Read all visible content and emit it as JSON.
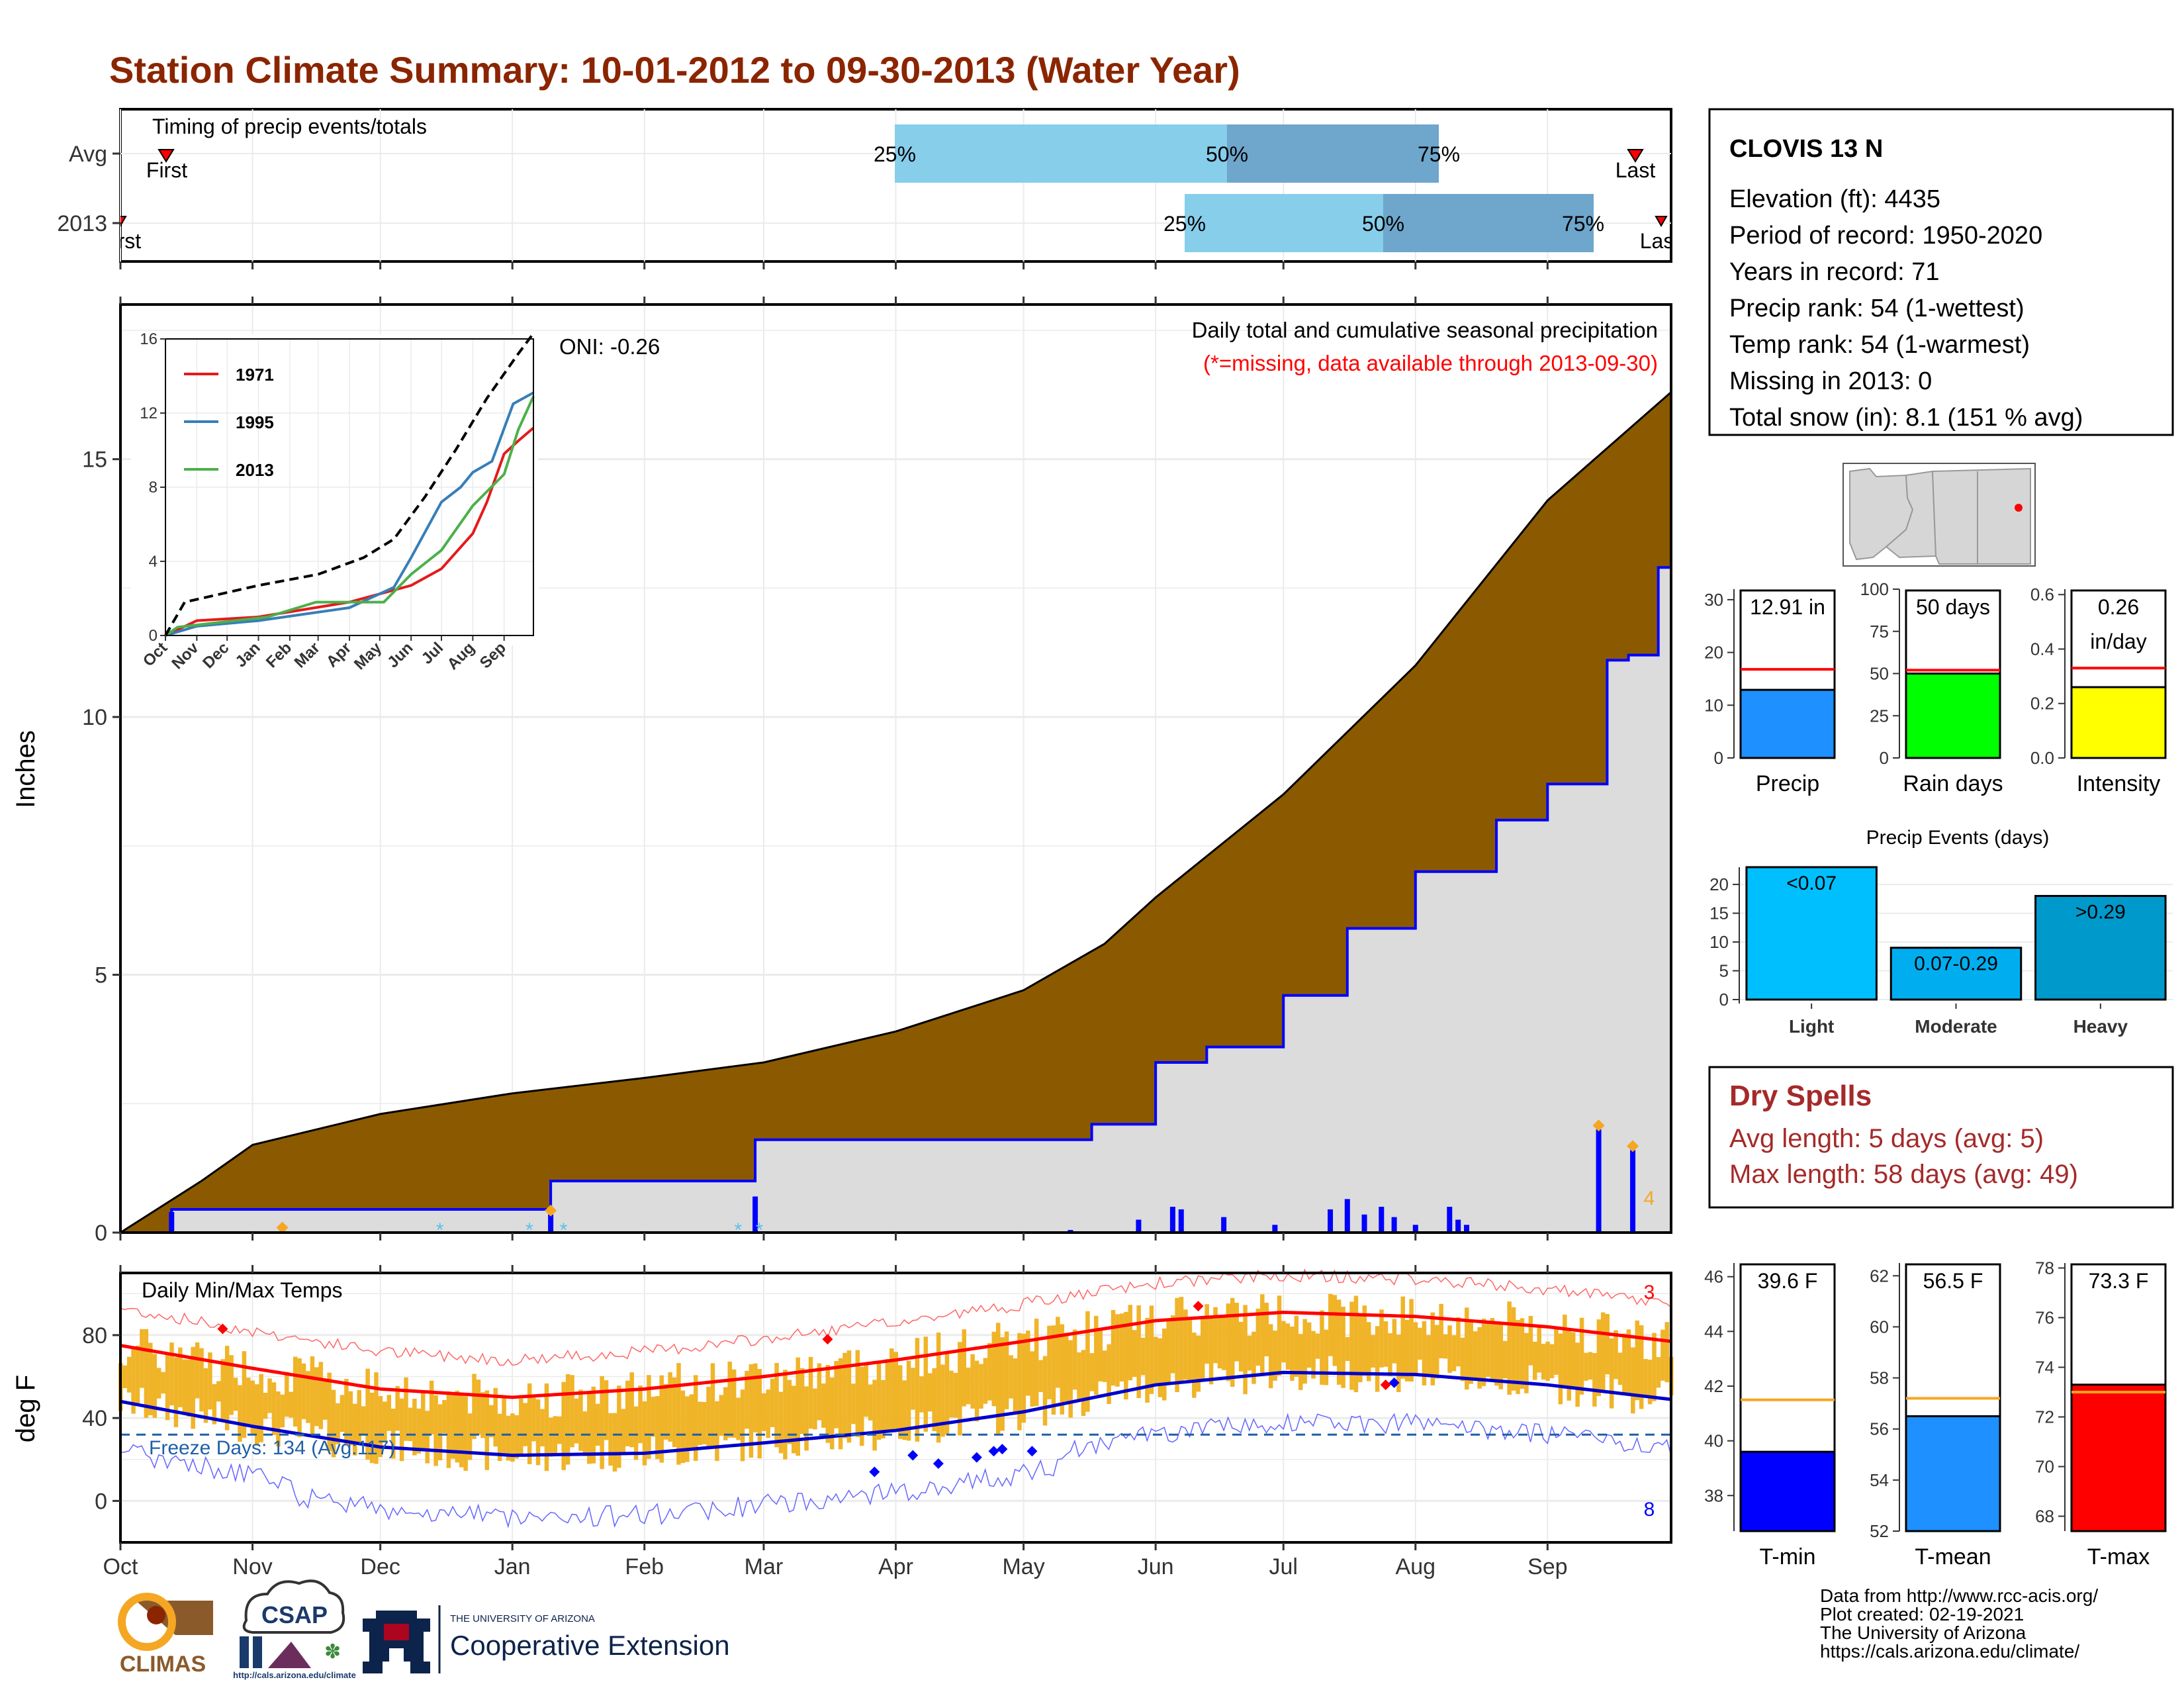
{
  "title": "Station Climate Summary: 10-01-2012 to 09-30-2013 (Water Year)",
  "colors": {
    "title": "#8b2500",
    "precip_fill": "#8b5a00",
    "light_bar": "#87ceeb",
    "dark_bar": "#6ea6cc",
    "accent_red": "#ff0000",
    "accent_blue": "#0000ff",
    "orange": "#f5a623",
    "freeze_line": "#1f5fa8"
  },
  "timing_panel": {
    "title": "Timing of precip events/totals",
    "rows": [
      "Avg",
      "2013"
    ],
    "avg": {
      "first_label": "First",
      "last_label": "Last",
      "q25": "25%",
      "q50": "50%",
      "q75": "75%"
    },
    "year": {
      "first_label": "First",
      "last_label": "Last",
      "q25": "25%",
      "q50": "50%",
      "q75": "75%"
    }
  },
  "precip_panel": {
    "ylabel": "Inches",
    "yticks": [
      "0",
      "5",
      "10",
      "15"
    ],
    "caption": "Daily total and cumulative seasonal precipitation",
    "missing_note": "(*=missing, data available through 2013-09-30)",
    "oni": "ONI: -0.26",
    "count_label": "4"
  },
  "temp_panel": {
    "title": "Daily Min/Max Temps",
    "ylabel": "deg F",
    "yticks": [
      "0",
      "40",
      "80"
    ],
    "freeze_label": "Freeze Days: 134 (Avg:117)",
    "record_high_count": "3",
    "record_low_count": "8"
  },
  "month_labels": [
    "Oct",
    "Nov",
    "Dec",
    "Jan",
    "Feb",
    "Mar",
    "Apr",
    "May",
    "Jun",
    "Jul",
    "Aug",
    "Sep"
  ],
  "inset": {
    "yticks": [
      "0",
      "4",
      "8",
      "12",
      "16"
    ],
    "months": [
      "Oct",
      "Nov",
      "Dec",
      "Jan",
      "Feb",
      "Mar",
      "Apr",
      "May",
      "Jun",
      "Jul",
      "Aug",
      "Sep"
    ],
    "legend": [
      "1971",
      "1995",
      "2013"
    ]
  },
  "station": {
    "name": "CLOVIS 13 N",
    "lines": [
      "Elevation (ft): 4435",
      "Period of record: 1950-2020",
      "Years in record: 71",
      "Precip rank: 54 (1-wettest)",
      "Temp rank: 54 (1-warmest)",
      "Missing in 2013: 0",
      "Total snow (in): 8.1 (151 % avg)"
    ]
  },
  "summary_bars": [
    {
      "label": "Precip",
      "value_text": "12.91 in"
    },
    {
      "label": "Rain days",
      "value_text": "50 days"
    },
    {
      "label": "Intensity",
      "value_text_1": "0.26",
      "value_text_2": "in/day"
    }
  ],
  "events_panel": {
    "title": "Precip Events (days)",
    "bars": [
      {
        "label": "Light",
        "bin": "<0.07"
      },
      {
        "label": "Moderate",
        "bin": "0.07-0.29"
      },
      {
        "label": "Heavy",
        "bin": ">0.29"
      }
    ]
  },
  "dry_spells": {
    "title": "Dry Spells",
    "avg_line": "Avg length: 5 days (avg: 5)",
    "max_line": "Max length: 58 days (avg: 49)"
  },
  "temp_bars": [
    {
      "label": "T-min",
      "value_text": "39.6 F"
    },
    {
      "label": "T-mean",
      "value_text": "56.5 F"
    },
    {
      "label": "T-max",
      "value_text": "73.3 F"
    }
  ],
  "credits": [
    "Data from http://www.rcc-acis.org/",
    "Plot created: 02-19-2021",
    "The University of Arizona",
    "https://cals.arizona.edu/climate/"
  ],
  "logos": {
    "climas": "CLIMAS",
    "csap": "CSAP",
    "csap_url": "http://cals.arizona.edu/climate",
    "ua_small": "THE UNIVERSITY OF ARIZONA",
    "ua_big": "Cooperative Extension"
  },
  "chart_data": [
    {
      "type": "area",
      "name": "cumulative precipitation",
      "x_domain": [
        "2012-10-01",
        "2013-09-30"
      ],
      "ylim": [
        0,
        18
      ],
      "series": [
        {
          "values_date": [
            "2012-10-01",
            "2012-10-20",
            "2012-11-01",
            "2012-12-01",
            "2013-01-01",
            "2013-02-01",
            "2013-03-01",
            "2013-04-01",
            "2013-05-01",
            "2013-05-20",
            "2013-06-01",
            "2013-07-01",
            "2013-08-01",
            "2013-09-01",
            "2013-09-30"
          ],
          "values": [
            0,
            1.0,
            1.7,
            2.3,
            2.7,
            3.0,
            3.3,
            3.9,
            4.7,
            5.6,
            6.5,
            8.5,
            11.0,
            14.2,
            16.3
          ]
        },
        {
          "values_date": [
            "2012-10-01",
            "2012-10-13",
            "2013-01-10",
            "2013-02-27",
            "2013-05-05",
            "2013-05-17",
            "2013-06-01",
            "2013-06-13",
            "2013-07-01",
            "2013-07-16",
            "2013-08-01",
            "2013-08-20",
            "2013-09-01",
            "2013-09-10",
            "2013-09-15",
            "2013-09-20",
            "2013-09-27",
            "2013-09-30"
          ],
          "values": [
            0,
            0.45,
            1.0,
            1.8,
            1.8,
            2.1,
            3.3,
            3.6,
            4.6,
            5.9,
            7.0,
            8.0,
            8.7,
            8.7,
            11.1,
            11.2,
            12.9,
            12.9
          ]
        }
      ],
      "daily_bars": {
        "dates": [
          "2012-10-13",
          "2013-01-10",
          "2013-02-27",
          "2013-05-12",
          "2013-05-28",
          "2013-06-05",
          "2013-06-07",
          "2013-06-17",
          "2013-06-29",
          "2013-07-12",
          "2013-07-16",
          "2013-07-20",
          "2013-07-24",
          "2013-07-27",
          "2013-08-01",
          "2013-08-09",
          "2013-08-11",
          "2013-08-13",
          "2013-09-13",
          "2013-09-21"
        ],
        "values": [
          0.4,
          0.35,
          0.7,
          0.05,
          0.25,
          0.5,
          0.45,
          0.3,
          0.15,
          0.45,
          0.65,
          0.35,
          0.5,
          0.3,
          0.15,
          0.5,
          0.25,
          0.15,
          2.0,
          1.6
        ]
      }
    },
    {
      "type": "line",
      "name": "daily min/max temps",
      "ylim": [
        -20,
        110
      ],
      "x_domain": [
        "2012-10-01",
        "2013-09-30"
      ],
      "series": [
        {
          "name": "normal max",
          "values_date": [
            "2012-10-01",
            "2012-11-01",
            "2012-12-01",
            "2013-01-01",
            "2013-02-01",
            "2013-03-01",
            "2013-04-01",
            "2013-05-01",
            "2013-06-01",
            "2013-07-01",
            "2013-08-01",
            "2013-09-01",
            "2013-09-30"
          ],
          "values": [
            75,
            64,
            54,
            50,
            54,
            60,
            68,
            77,
            87,
            91,
            89,
            84,
            77
          ]
        },
        {
          "name": "normal min",
          "values_date": [
            "2012-10-01",
            "2012-11-01",
            "2012-12-01",
            "2013-01-01",
            "2013-02-01",
            "2013-03-01",
            "2013-04-01",
            "2013-05-01",
            "2013-06-01",
            "2013-07-01",
            "2013-08-01",
            "2013-09-01",
            "2013-09-30"
          ],
          "values": [
            48,
            36,
            26,
            22,
            23,
            28,
            34,
            43,
            56,
            62,
            61,
            56,
            49
          ]
        }
      ],
      "freeze_threshold": 32
    },
    {
      "type": "bar",
      "categories": [
        "Precip"
      ],
      "values": [
        12.91
      ],
      "reference": 16.8,
      "ylim": [
        0,
        32
      ],
      "yticks": [
        "0",
        "10",
        "20",
        "30"
      ]
    },
    {
      "type": "bar",
      "categories": [
        "Rain days"
      ],
      "values": [
        50
      ],
      "reference": 52,
      "ylim": [
        0,
        100
      ],
      "yticks": [
        "0",
        "25",
        "50",
        "75",
        "100"
      ]
    },
    {
      "type": "bar",
      "categories": [
        "Intensity"
      ],
      "values": [
        0.26
      ],
      "reference": 0.33,
      "ylim": [
        0,
        0.62
      ],
      "yticks": [
        "0.0",
        "0.2",
        "0.4",
        "0.6"
      ]
    },
    {
      "type": "bar",
      "name": "Precip Events (days)",
      "categories": [
        "Light",
        "Moderate",
        "Heavy"
      ],
      "values": [
        23,
        9,
        18
      ],
      "ylim": [
        0,
        23
      ],
      "yticks": [
        "0",
        "5",
        "10",
        "15",
        "20"
      ]
    },
    {
      "type": "bar",
      "categories": [
        "T-min"
      ],
      "values": [
        39.6
      ],
      "reference": 41.5,
      "ylim": [
        36.7,
        46.5
      ],
      "yticks": [
        "38",
        "40",
        "42",
        "44",
        "46"
      ]
    },
    {
      "type": "bar",
      "categories": [
        "T-mean"
      ],
      "values": [
        56.5
      ],
      "reference": 57.2,
      "ylim": [
        52,
        62.5
      ],
      "yticks": [
        "52",
        "54",
        "56",
        "58",
        "60",
        "62"
      ]
    },
    {
      "type": "bar",
      "categories": [
        "T-max"
      ],
      "values": [
        73.3
      ],
      "reference": 73.0,
      "ylim": [
        67.4,
        78.2
      ],
      "yticks": [
        "68",
        "70",
        "72",
        "74",
        "76",
        "78"
      ]
    },
    {
      "type": "line",
      "name": "inset cumulative precip",
      "ylim": [
        0,
        16
      ],
      "x_domain": [
        "2012-10-01",
        "2013-09-30"
      ],
      "series": [
        {
          "name": "1971",
          "values_date": [
            "2012-10-01",
            "2012-11-01",
            "2013-01-01",
            "2013-04-01",
            "2013-06-01",
            "2013-07-01",
            "2013-08-01",
            "2013-08-15",
            "2013-09-01",
            "2013-09-15",
            "2013-09-30"
          ],
          "values": [
            0,
            0.8,
            1.0,
            1.8,
            2.7,
            3.6,
            5.5,
            7.2,
            9.8,
            10.5,
            11.2
          ]
        },
        {
          "name": "1995",
          "values_date": [
            "2012-10-01",
            "2012-11-01",
            "2013-01-01",
            "2013-04-01",
            "2013-05-15",
            "2013-06-01",
            "2013-07-01",
            "2013-07-20",
            "2013-08-01",
            "2013-08-20",
            "2013-09-10",
            "2013-09-30"
          ],
          "values": [
            0,
            0.5,
            0.8,
            1.5,
            2.6,
            4.2,
            7.2,
            8.0,
            8.8,
            9.4,
            12.5,
            13.1
          ]
        },
        {
          "name": "2013",
          "values_date": [
            "2012-10-01",
            "2012-10-13",
            "2013-01-10",
            "2013-02-27",
            "2013-05-05",
            "2013-06-01",
            "2013-07-01",
            "2013-08-01",
            "2013-09-01",
            "2013-09-15",
            "2013-09-30"
          ],
          "values": [
            0,
            0.45,
            1.0,
            1.8,
            1.8,
            3.3,
            4.6,
            7.0,
            8.7,
            11.1,
            12.9
          ]
        },
        {
          "name": "avg",
          "values_date": [
            "2012-10-01",
            "2012-10-20",
            "2013-01-01",
            "2013-03-01",
            "2013-04-15",
            "2013-05-15",
            "2013-06-15",
            "2013-07-15",
            "2013-08-15",
            "2013-09-15",
            "2013-09-30"
          ],
          "values": [
            0,
            1.8,
            2.7,
            3.3,
            4.2,
            5.2,
            7.5,
            10.0,
            12.8,
            15.2,
            16.3
          ]
        }
      ]
    }
  ]
}
